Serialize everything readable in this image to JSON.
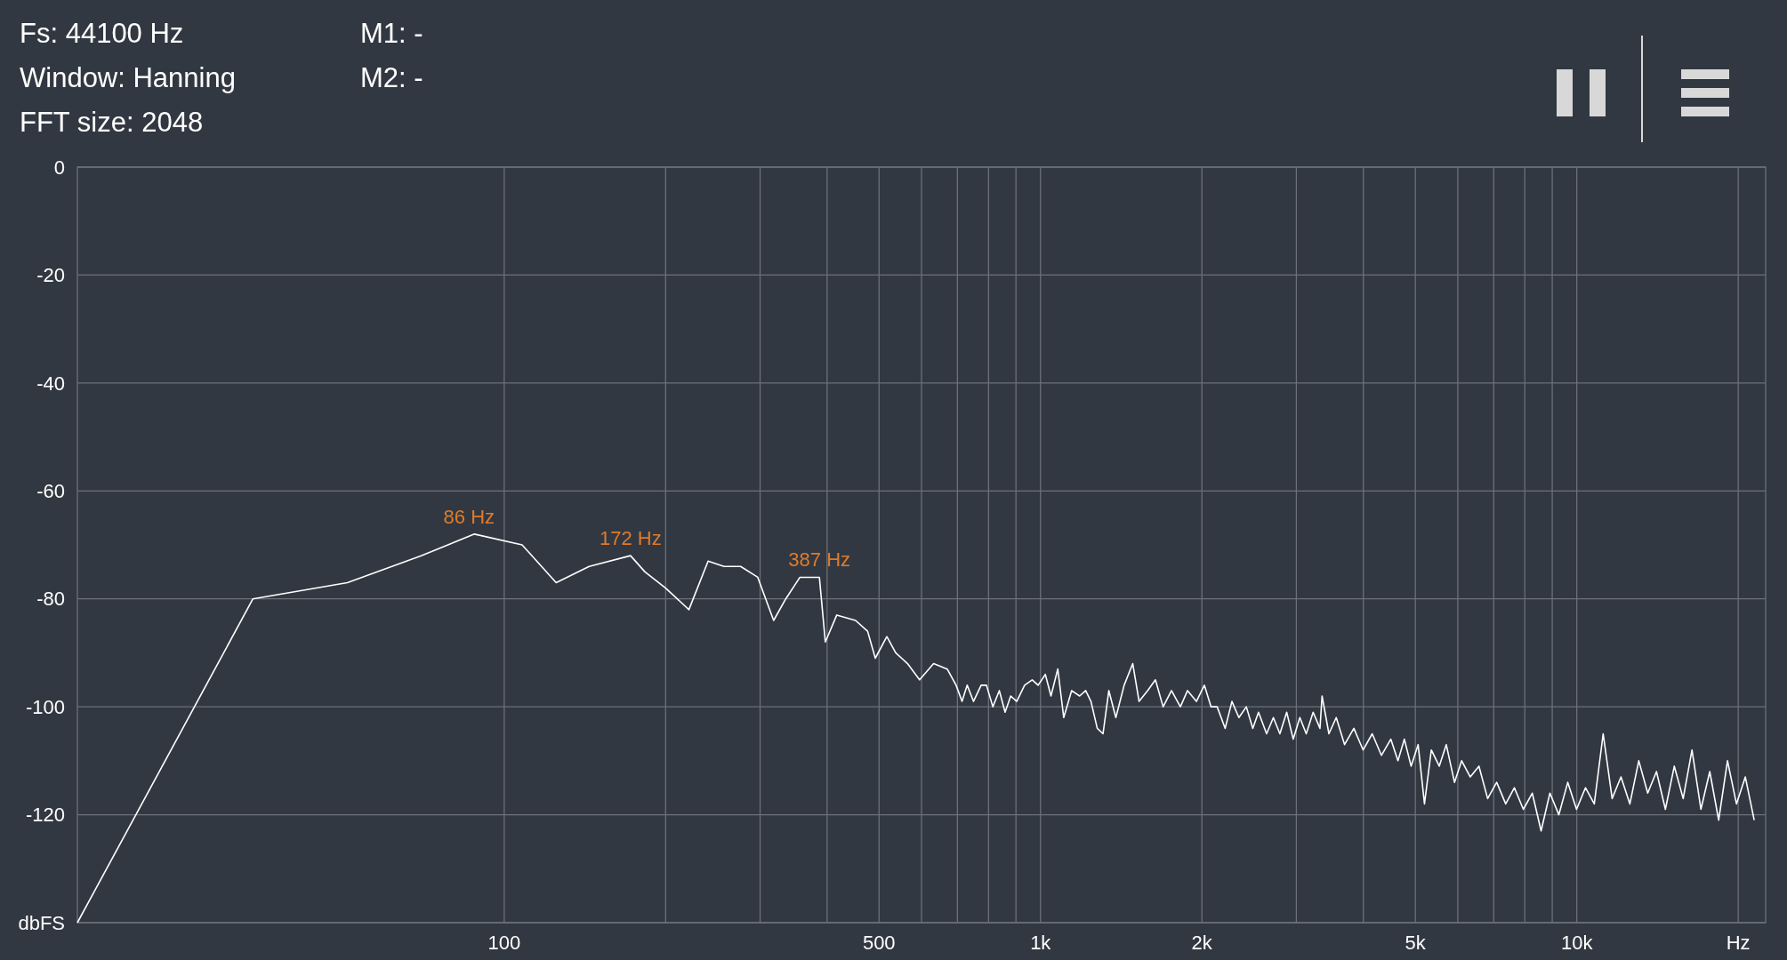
{
  "chart_data": {
    "type": "line",
    "log": "x",
    "grid": true,
    "xlim": [
      16,
      22500
    ],
    "ylim": [
      -140,
      0
    ],
    "xticks": [
      {
        "value": 200,
        "label": null
      },
      {
        "value": 300,
        "label": null
      },
      {
        "value": 400,
        "label": null
      },
      100,
      500,
      {
        "value": 600,
        "label": null
      },
      {
        "value": 700,
        "label": null
      },
      {
        "value": 800,
        "label": null
      },
      {
        "value": 900,
        "label": null
      },
      {
        "value": 1000,
        "label": "1k"
      },
      {
        "value": 2000,
        "label": "2k"
      },
      {
        "value": 3000,
        "label": null
      },
      {
        "value": 4000,
        "label": null
      },
      {
        "value": 5000,
        "label": "5k"
      },
      {
        "value": 6000,
        "label": null
      },
      {
        "value": 7000,
        "label": null
      },
      {
        "value": 8000,
        "label": null
      },
      {
        "value": 9000,
        "label": null
      },
      {
        "value": 10000,
        "label": "10k"
      },
      {
        "value": 20000,
        "label": "Hz"
      }
    ],
    "yticks": [
      0,
      -20,
      -40,
      -60,
      -80,
      -100,
      -120,
      {
        "value": -140,
        "label": "dbFS"
      }
    ],
    "annotations": [
      "Fs: 44100 Hz",
      "Window: Hanning",
      "FFT size: 2048",
      "M1: -",
      "M2: -",
      {
        "text": "86 Hz",
        "x": 86,
        "y": -68
      },
      {
        "text": "172 Hz",
        "x": 172,
        "y": -72
      },
      {
        "text": "387 Hz",
        "x": 387,
        "y": -76
      }
    ],
    "x": [
      16,
      34,
      51,
      70,
      88,
      108,
      125,
      144,
      172,
      183,
      200,
      221,
      240,
      257,
      276,
      297,
      318,
      335,
      356,
      387,
      397,
      417,
      452,
      476,
      492,
      517,
      537,
      565,
      595,
      632,
      670,
      696,
      714,
      730,
      750,
      775,
      793,
      815,
      838,
      859,
      880,
      903,
      934,
      965,
      990,
      1021,
      1046,
      1077,
      1105,
      1143,
      1183,
      1214,
      1242,
      1276,
      1308,
      1341,
      1382,
      1432,
      1486,
      1527,
      1584,
      1638,
      1693,
      1755,
      1823,
      1880,
      1953,
      2021,
      2080,
      2135,
      2210,
      2275,
      2344,
      2420,
      2488,
      2550,
      2640,
      2718,
      2795,
      2878,
      2960,
      3045,
      3130,
      3224,
      3320,
      3350,
      3450,
      3560,
      3690,
      3840,
      3996,
      4155,
      4322,
      4500,
      4640,
      4770,
      4910,
      5060,
      5200,
      5355,
      5540,
      5710,
      5915,
      6100,
      6330,
      6570,
      6820,
      7090,
      7370,
      7650,
      7950,
      8260,
      8580,
      8910,
      9260,
      9620,
      9990,
      10380,
      10780,
      11200,
      11640,
      12090,
      12560,
      13050,
      13560,
      14080,
      14630,
      15200,
      15790,
      16400,
      17040,
      17700,
      18390,
      19100,
      19850,
      20620,
      21420
    ],
    "series": [
      {
        "color": "#ffffff",
        "values": [
          -140,
          -80,
          -77,
          -72,
          -68,
          -70,
          -77,
          -74,
          -72,
          -75,
          -78,
          -82,
          -73,
          -74,
          -74,
          -76,
          -84,
          -80,
          -76,
          -76,
          -88,
          -83,
          -84,
          -86,
          -91,
          -87,
          -90,
          -92,
          -95,
          -92,
          -93,
          -96,
          -99,
          -96,
          -99,
          -96,
          -96,
          -100,
          -97,
          -101,
          -98,
          -99,
          -96,
          -95,
          -96,
          -94,
          -98,
          -93,
          -102,
          -97,
          -98,
          -97,
          -99,
          -104,
          -105,
          -97,
          -102,
          -96,
          -92,
          -99,
          -97,
          -95,
          -100,
          -97,
          -100,
          -97,
          -99,
          -96,
          -100,
          -100,
          -104,
          -99,
          -102,
          -100,
          -104,
          -101,
          -105,
          -102,
          -105,
          -101,
          -106,
          -102,
          -105,
          -101,
          -104,
          -98,
          -105,
          -102,
          -107,
          -104,
          -108,
          -105,
          -109,
          -106,
          -110,
          -106,
          -111,
          -107,
          -118,
          -108,
          -111,
          -107,
          -114,
          -110,
          -113,
          -111,
          -117,
          -114,
          -118,
          -115,
          -119,
          -116,
          -123,
          -116,
          -120,
          -114,
          -119,
          -115,
          -118,
          -105,
          -117,
          -113,
          -118,
          -110,
          -116,
          -112,
          -119,
          -111,
          -117,
          -108,
          -119,
          -112,
          -121,
          -110,
          -118,
          -113,
          -121
        ]
      }
    ]
  }
}
